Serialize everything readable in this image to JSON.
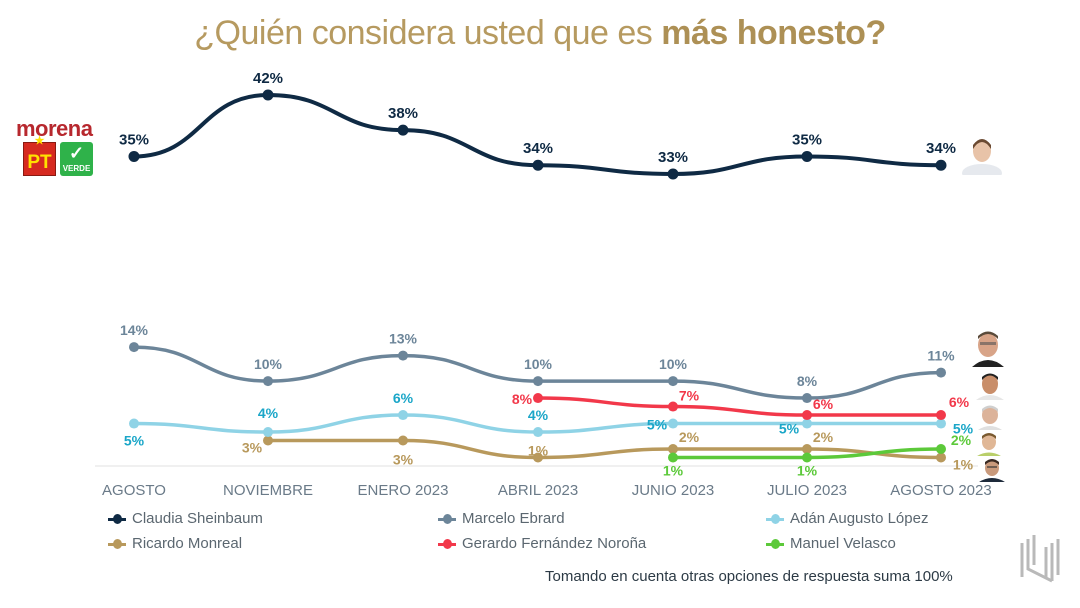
{
  "title": {
    "regular": "¿Quién considera usted que es ",
    "bold": "más honesto?"
  },
  "party_logos": {
    "morena": "morena",
    "pt": "PT",
    "verde": "VERDE"
  },
  "footnote": "Tomando en cuenta otras opciones de respuesta suma 100%",
  "chart_data": {
    "type": "line",
    "title": "¿Quién considera usted que es más honesto?",
    "xlabel": "",
    "ylabel": "",
    "ylim": [
      0,
      45
    ],
    "grid": false,
    "legend_position": "bottom",
    "categories": [
      "AGOSTO",
      "NOVIEMBRE",
      "ENERO 2023",
      "ABRIL 2023",
      "JUNIO 2023",
      "JULIO 2023",
      "AGOSTO 2023"
    ],
    "series": [
      {
        "name": "Claudia Sheinbaum",
        "color": "#0f2a44",
        "values": [
          35,
          42,
          38,
          34,
          33,
          35,
          34
        ],
        "labels": [
          "35%",
          "42%",
          "38%",
          "34%",
          "33%",
          "35%",
          "34%"
        ]
      },
      {
        "name": "Marcelo Ebrard",
        "color": "#6c8599",
        "values": [
          14,
          10,
          13,
          10,
          10,
          8,
          11
        ],
        "labels": [
          "14%",
          "10%",
          "13%",
          "10%",
          "10%",
          "8%",
          "11%"
        ]
      },
      {
        "name": "Adán Augusto López",
        "color": "#8fd3e6",
        "label_color": "#1aa6c8",
        "values": [
          5,
          4,
          6,
          4,
          5,
          5,
          5
        ],
        "labels": [
          "5%",
          "4%",
          "6%",
          "4%",
          "5%",
          "5%",
          "5%"
        ]
      },
      {
        "name": "Ricardo Monreal",
        "color": "#b8995c",
        "values": [
          null,
          3,
          3,
          1,
          2,
          2,
          1
        ],
        "labels": [
          null,
          "3%",
          "3%",
          "1%",
          "2%",
          "2%",
          "1%"
        ]
      },
      {
        "name": "Gerardo Fernández Noroña",
        "color": "#f2384a",
        "values": [
          null,
          null,
          null,
          8,
          7,
          6,
          6
        ],
        "labels": [
          null,
          null,
          null,
          "8%",
          "7%",
          "6%",
          "6%"
        ]
      },
      {
        "name": "Manuel Velasco",
        "color": "#5cc93a",
        "values": [
          null,
          null,
          null,
          null,
          1,
          1,
          2
        ],
        "labels": [
          null,
          null,
          null,
          null,
          "1%",
          "1%",
          "2%"
        ]
      }
    ]
  }
}
